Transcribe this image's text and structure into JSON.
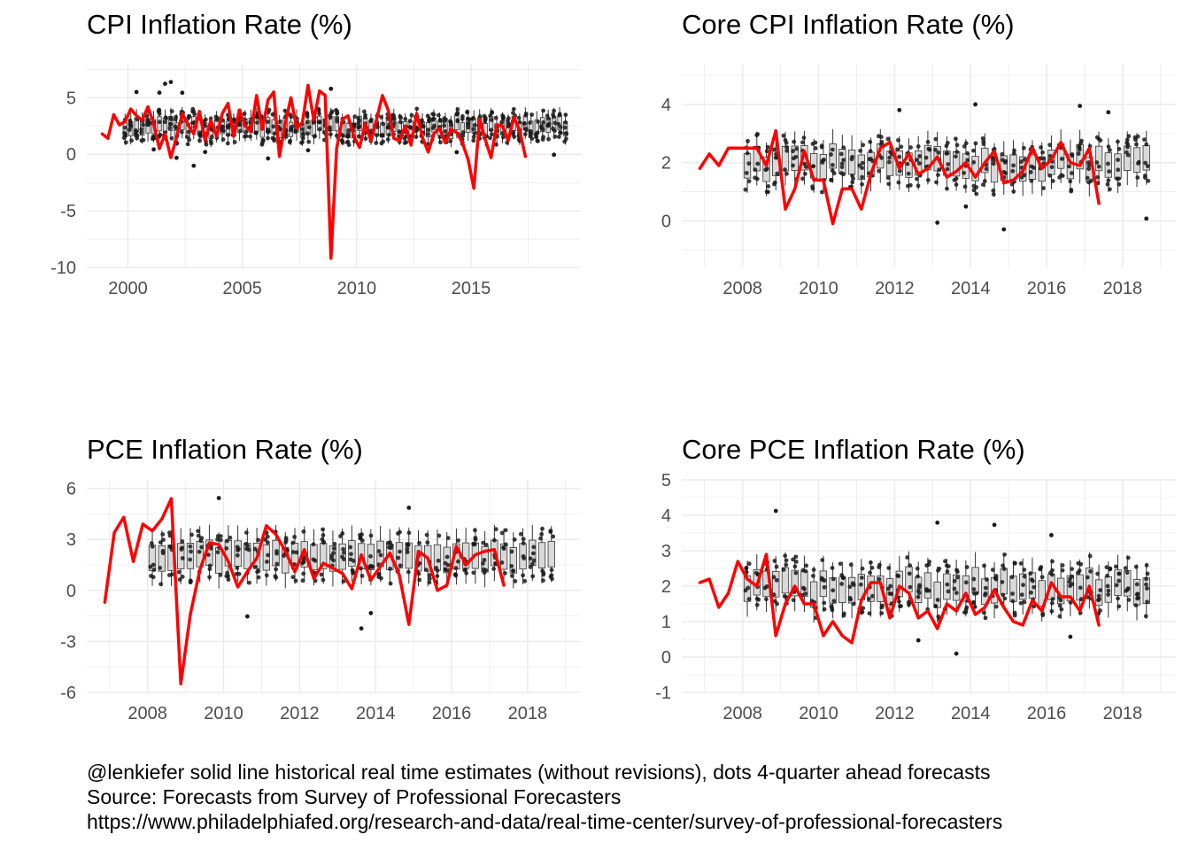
{
  "caption": {
    "line1": "@lenkiefer solid line historical real time estimates (without revisions), dots 4-quarter ahead forecasts",
    "line2": "Source: Forecasts from Survey of Professional Forecasters",
    "line3": "https://www.philadelphiafed.org/research-and-data/real-time-center/survey-of-professional-forecasters"
  },
  "colors": {
    "historical_line": "#ff0000",
    "forecast_dots": "#1a1a1a",
    "boxplot_fill": "#d9d9d9",
    "grid": "#ebebeb"
  },
  "chart_data": [
    {
      "id": "cpi",
      "type": "line",
      "title": "CPI Inflation Rate (%)",
      "xlim": [
        1998.2,
        2019.8
      ],
      "ylim": [
        -10.0,
        8.0
      ],
      "x_ticks": [
        2000,
        2005,
        2010,
        2015
      ],
      "x_tick_labels": [
        "2000",
        "2005",
        "2010",
        "2015"
      ],
      "y_ticks": [
        -10,
        -5,
        0,
        5
      ],
      "y_tick_labels": [
        "-10",
        "-5",
        "0",
        "5"
      ],
      "grid": true,
      "series": [
        {
          "role": "historical real time estimate",
          "x": [
            1998.875,
            1999.125,
            1999.375,
            1999.625,
            1999.875,
            2000.125,
            2000.375,
            2000.625,
            2000.875,
            2001.125,
            2001.375,
            2001.625,
            2001.875,
            2002.125,
            2002.375,
            2002.625,
            2002.875,
            2003.125,
            2003.375,
            2003.625,
            2003.875,
            2004.125,
            2004.375,
            2004.625,
            2004.875,
            2005.125,
            2005.375,
            2005.625,
            2005.875,
            2006.125,
            2006.375,
            2006.625,
            2006.875,
            2007.125,
            2007.375,
            2007.625,
            2007.875,
            2008.125,
            2008.375,
            2008.625,
            2008.875,
            2009.125,
            2009.375,
            2009.625,
            2009.875,
            2010.125,
            2010.375,
            2010.625,
            2010.875,
            2011.125,
            2011.375,
            2011.625,
            2011.875,
            2012.125,
            2012.375,
            2012.625,
            2012.875,
            2013.125,
            2013.375,
            2013.625,
            2013.875,
            2014.125,
            2014.375,
            2014.625,
            2014.875,
            2015.125,
            2015.375,
            2015.625,
            2015.875,
            2016.125,
            2016.375,
            2016.625,
            2016.875,
            2017.125,
            2017.375
          ],
          "y": [
            1.8,
            1.4,
            3.5,
            2.6,
            2.9,
            4.0,
            3.4,
            3.0,
            4.2,
            2.7,
            0.5,
            1.8,
            -0.3,
            1.5,
            3.6,
            2.6,
            1.8,
            3.8,
            1.2,
            3.0,
            1.6,
            3.6,
            4.5,
            1.6,
            3.9,
            2.5,
            2.0,
            5.2,
            2.2,
            4.8,
            5.5,
            -0.2,
            2.7,
            5.0,
            2.3,
            2.8,
            6.1,
            3.0,
            5.6,
            5.2,
            -9.2,
            0.5,
            3.1,
            3.4,
            1.6,
            0.6,
            2.7,
            1.2,
            3.1,
            5.2,
            3.9,
            1.4,
            1.2,
            2.5,
            0.8,
            3.6,
            1.5,
            0.2,
            1.8,
            2.3,
            1.0,
            2.2,
            1.9,
            1.0,
            -0.5,
            -3.0,
            3.1,
            1.3,
            -0.3,
            2.6,
            2.5,
            1.2,
            3.3,
            2.1,
            -0.2
          ]
        }
      ]
    },
    {
      "id": "core_cpi",
      "type": "line",
      "title": "Core CPI Inflation Rate (%)",
      "xlim": [
        2006.4,
        2019.4
      ],
      "ylim": [
        -1.6,
        5.4
      ],
      "x_ticks": [
        2008,
        2010,
        2012,
        2014,
        2016,
        2018
      ],
      "x_tick_labels": [
        "2008",
        "2010",
        "2012",
        "2014",
        "2016",
        "2018"
      ],
      "y_ticks": [
        0,
        2,
        4
      ],
      "y_tick_labels": [
        "0",
        "2",
        "4"
      ],
      "grid": true,
      "series": [
        {
          "role": "historical real time estimate",
          "x": [
            2006.875,
            2007.125,
            2007.375,
            2007.625,
            2007.875,
            2008.125,
            2008.375,
            2008.625,
            2008.875,
            2009.125,
            2009.375,
            2009.625,
            2009.875,
            2010.125,
            2010.375,
            2010.625,
            2010.875,
            2011.125,
            2011.375,
            2011.625,
            2011.875,
            2012.125,
            2012.375,
            2012.625,
            2012.875,
            2013.125,
            2013.375,
            2013.625,
            2013.875,
            2014.125,
            2014.375,
            2014.625,
            2014.875,
            2015.125,
            2015.375,
            2015.625,
            2015.875,
            2016.125,
            2016.375,
            2016.625,
            2016.875,
            2017.125,
            2017.375
          ],
          "y": [
            1.8,
            2.3,
            1.9,
            2.5,
            2.5,
            2.5,
            2.5,
            1.9,
            3.1,
            0.4,
            1.1,
            2.4,
            1.4,
            1.4,
            -0.1,
            1.1,
            1.1,
            0.4,
            1.6,
            2.5,
            2.7,
            1.8,
            2.3,
            1.6,
            1.8,
            2.2,
            1.5,
            1.7,
            2.0,
            1.5,
            2.0,
            2.4,
            1.3,
            1.4,
            1.7,
            2.5,
            1.8,
            2.1,
            2.7,
            2.0,
            1.9,
            2.5,
            0.6
          ]
        }
      ]
    },
    {
      "id": "pce",
      "type": "line",
      "title": "PCE Inflation Rate (%)",
      "xlim": [
        2006.4,
        2019.4
      ],
      "ylim": [
        -6.0,
        6.5
      ],
      "x_ticks": [
        2008,
        2010,
        2012,
        2014,
        2016,
        2018
      ],
      "x_tick_labels": [
        "2008",
        "2010",
        "2012",
        "2014",
        "2016",
        "2018"
      ],
      "y_ticks": [
        -6,
        -3,
        0,
        3,
        6
      ],
      "y_tick_labels": [
        "-6",
        "-3",
        "0",
        "3",
        "6"
      ],
      "grid": true,
      "series": [
        {
          "role": "historical real time estimate",
          "x": [
            2006.875,
            2007.125,
            2007.375,
            2007.625,
            2007.875,
            2008.125,
            2008.375,
            2008.625,
            2008.875,
            2009.125,
            2009.375,
            2009.625,
            2009.875,
            2010.125,
            2010.375,
            2010.625,
            2010.875,
            2011.125,
            2011.375,
            2011.625,
            2011.875,
            2012.125,
            2012.375,
            2012.625,
            2012.875,
            2013.125,
            2013.375,
            2013.625,
            2013.875,
            2014.125,
            2014.375,
            2014.625,
            2014.875,
            2015.125,
            2015.375,
            2015.625,
            2015.875,
            2016.125,
            2016.375,
            2016.625,
            2016.875,
            2017.125,
            2017.375
          ],
          "y": [
            -0.7,
            3.4,
            4.3,
            1.7,
            3.9,
            3.5,
            4.2,
            5.4,
            -5.5,
            -1.4,
            1.2,
            2.8,
            2.7,
            1.7,
            0.2,
            1.1,
            1.9,
            3.8,
            3.3,
            2.3,
            1.1,
            2.4,
            0.7,
            1.6,
            1.3,
            1.0,
            0.1,
            2.1,
            0.6,
            1.4,
            2.2,
            0.9,
            -2.0,
            2.3,
            1.9,
            0.0,
            0.3,
            2.6,
            1.5,
            2.1,
            2.3,
            2.4,
            0.3
          ]
        }
      ]
    },
    {
      "id": "core_pce",
      "type": "line",
      "title": "Core PCE Inflation Rate (%)",
      "xlim": [
        2006.4,
        2019.4
      ],
      "ylim": [
        -1.0,
        5.0
      ],
      "x_ticks": [
        2008,
        2010,
        2012,
        2014,
        2016,
        2018
      ],
      "x_tick_labels": [
        "2008",
        "2010",
        "2012",
        "2014",
        "2016",
        "2018"
      ],
      "y_ticks": [
        -1,
        0,
        1,
        2,
        3,
        4,
        5
      ],
      "y_tick_labels": [
        "-1",
        "0",
        "1",
        "2",
        "3",
        "4",
        "5"
      ],
      "grid": true,
      "series": [
        {
          "role": "historical real time estimate",
          "x": [
            2006.875,
            2007.125,
            2007.375,
            2007.625,
            2007.875,
            2008.125,
            2008.375,
            2008.625,
            2008.875,
            2009.125,
            2009.375,
            2009.625,
            2009.875,
            2010.125,
            2010.375,
            2010.625,
            2010.875,
            2011.125,
            2011.375,
            2011.625,
            2011.875,
            2012.125,
            2012.375,
            2012.625,
            2012.875,
            2013.125,
            2013.375,
            2013.625,
            2013.875,
            2014.125,
            2014.375,
            2014.625,
            2014.875,
            2015.125,
            2015.375,
            2015.625,
            2015.875,
            2016.125,
            2016.375,
            2016.625,
            2016.875,
            2017.125,
            2017.375
          ],
          "y": [
            2.1,
            2.2,
            1.4,
            1.8,
            2.7,
            2.2,
            2.0,
            2.9,
            0.6,
            1.5,
            2.0,
            1.5,
            1.5,
            0.6,
            1.0,
            0.6,
            0.4,
            1.6,
            2.1,
            2.1,
            1.1,
            2.0,
            1.8,
            1.1,
            1.3,
            0.8,
            1.5,
            1.3,
            1.8,
            1.2,
            1.4,
            1.9,
            1.4,
            1.0,
            0.9,
            1.6,
            1.3,
            2.1,
            1.7,
            1.7,
            1.3,
            2.0,
            0.9
          ]
        }
      ]
    }
  ]
}
